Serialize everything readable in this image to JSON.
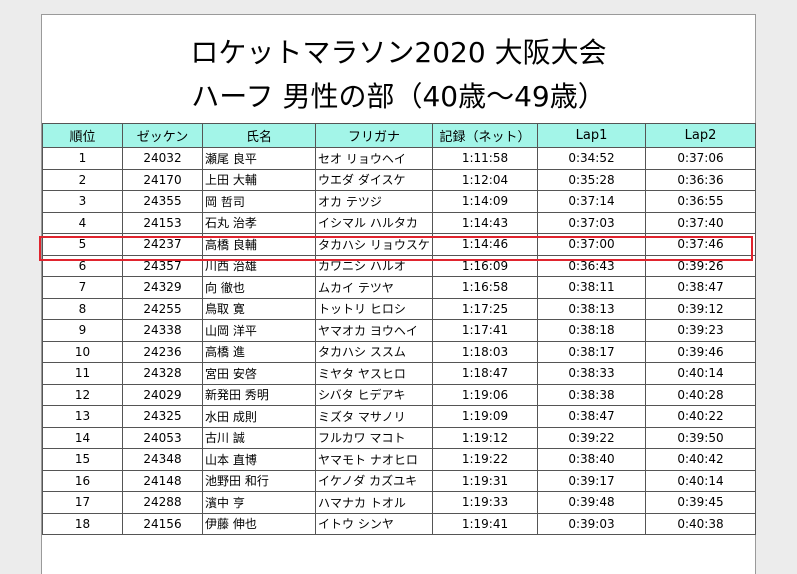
{
  "title_line1": "ロケットマラソン2020 大阪大会",
  "title_line2": "ハーフ 男性の部（40歳～49歳）",
  "colors": {
    "header_bg": "#a3f5e8",
    "highlight": "#e0242e"
  },
  "columns": [
    "順位",
    "ゼッケン",
    "氏名",
    "フリガナ",
    "記録（ネット）",
    "Lap1",
    "Lap2"
  ],
  "rows": [
    [
      "1",
      "24032",
      "瀬尾 良平",
      "セオ リョウヘイ",
      "1:11:58",
      "0:34:52",
      "0:37:06"
    ],
    [
      "2",
      "24170",
      "上田 大輔",
      "ウエダ ダイスケ",
      "1:12:04",
      "0:35:28",
      "0:36:36"
    ],
    [
      "3",
      "24355",
      "岡 哲司",
      "オカ テツジ",
      "1:14:09",
      "0:37:14",
      "0:36:55"
    ],
    [
      "4",
      "24153",
      "石丸 治孝",
      "イシマル ハルタカ",
      "1:14:43",
      "0:37:03",
      "0:37:40"
    ],
    [
      "5",
      "24237",
      "高橋 良輔",
      "タカハシ リョウスケ",
      "1:14:46",
      "0:37:00",
      "0:37:46"
    ],
    [
      "6",
      "24357",
      "川西 治雄",
      "カワニシ ハルオ",
      "1:16:09",
      "0:36:43",
      "0:39:26"
    ],
    [
      "7",
      "24329",
      "向 徹也",
      "ムカイ テツヤ",
      "1:16:58",
      "0:38:11",
      "0:38:47"
    ],
    [
      "8",
      "24255",
      "鳥取 寛",
      "トットリ ヒロシ",
      "1:17:25",
      "0:38:13",
      "0:39:12"
    ],
    [
      "9",
      "24338",
      "山岡 洋平",
      "ヤマオカ ヨウヘイ",
      "1:17:41",
      "0:38:18",
      "0:39:23"
    ],
    [
      "10",
      "24236",
      "高橋 進",
      "タカハシ ススム",
      "1:18:03",
      "0:38:17",
      "0:39:46"
    ],
    [
      "11",
      "24328",
      "宮田 安啓",
      "ミヤタ ヤスヒロ",
      "1:18:47",
      "0:38:33",
      "0:40:14"
    ],
    [
      "12",
      "24029",
      "新発田 秀明",
      "シバタ ヒデアキ",
      "1:19:06",
      "0:38:38",
      "0:40:28"
    ],
    [
      "13",
      "24325",
      "水田 成則",
      "ミズタ マサノリ",
      "1:19:09",
      "0:38:47",
      "0:40:22"
    ],
    [
      "14",
      "24053",
      "古川 誠",
      "フルカワ マコト",
      "1:19:12",
      "0:39:22",
      "0:39:50"
    ],
    [
      "15",
      "24348",
      "山本 直博",
      "ヤマモト ナオヒロ",
      "1:19:22",
      "0:38:40",
      "0:40:42"
    ],
    [
      "16",
      "24148",
      "池野田 和行",
      "イケノダ カズユキ",
      "1:19:31",
      "0:39:17",
      "0:40:14"
    ],
    [
      "17",
      "24288",
      "濱中 亨",
      "ハマナカ トオル",
      "1:19:33",
      "0:39:48",
      "0:39:45"
    ],
    [
      "18",
      "24156",
      "伊藤 伸也",
      "イトウ シンヤ",
      "1:19:41",
      "0:39:03",
      "0:40:38"
    ]
  ]
}
